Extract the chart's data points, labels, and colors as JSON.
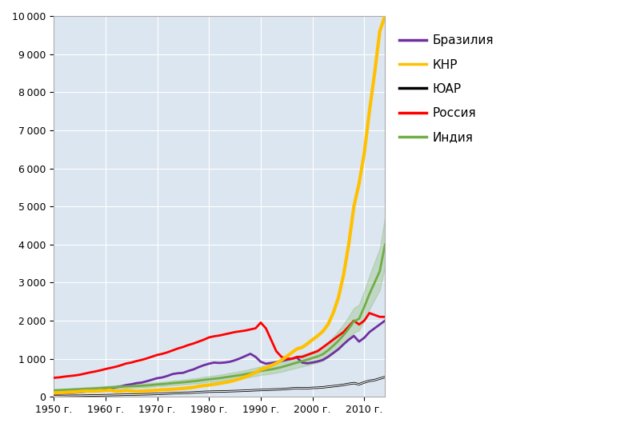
{
  "years": [
    1950,
    1951,
    1952,
    1953,
    1954,
    1955,
    1956,
    1957,
    1958,
    1959,
    1960,
    1961,
    1962,
    1963,
    1964,
    1965,
    1966,
    1967,
    1968,
    1969,
    1970,
    1971,
    1972,
    1973,
    1974,
    1975,
    1976,
    1977,
    1978,
    1979,
    1980,
    1981,
    1982,
    1983,
    1984,
    1985,
    1986,
    1987,
    1988,
    1989,
    1990,
    1991,
    1992,
    1993,
    1994,
    1995,
    1996,
    1997,
    1998,
    1999,
    2000,
    2001,
    2002,
    2003,
    2004,
    2005,
    2006,
    2007,
    2008,
    2009,
    2010,
    2011,
    2012,
    2013,
    2014
  ],
  "brazil": [
    75,
    82,
    92,
    100,
    107,
    120,
    135,
    148,
    155,
    168,
    200,
    220,
    250,
    275,
    310,
    330,
    360,
    375,
    410,
    450,
    490,
    510,
    550,
    600,
    620,
    630,
    680,
    720,
    780,
    830,
    870,
    900,
    890,
    900,
    920,
    960,
    1010,
    1070,
    1130,
    1050,
    920,
    870,
    890,
    910,
    940,
    970,
    1000,
    1030,
    900,
    880,
    900,
    930,
    970,
    1050,
    1150,
    1250,
    1380,
    1500,
    1600,
    1450,
    1550,
    1700,
    1800,
    1900,
    2000
  ],
  "china": [
    100,
    108,
    115,
    122,
    128,
    140,
    150,
    150,
    150,
    158,
    165,
    175,
    145,
    150,
    165,
    155,
    145,
    150,
    158,
    165,
    175,
    185,
    190,
    200,
    210,
    220,
    235,
    250,
    275,
    295,
    310,
    330,
    350,
    375,
    400,
    435,
    475,
    520,
    580,
    640,
    720,
    760,
    820,
    880,
    960,
    1060,
    1160,
    1260,
    1300,
    1390,
    1500,
    1600,
    1720,
    1900,
    2200,
    2600,
    3200,
    4000,
    5000,
    5600,
    6400,
    7500,
    8500,
    9600,
    10000
  ],
  "south_africa": [
    20,
    22,
    24,
    26,
    28,
    30,
    33,
    36,
    38,
    41,
    44,
    47,
    50,
    53,
    57,
    58,
    62,
    65,
    68,
    73,
    78,
    82,
    88,
    95,
    100,
    105,
    108,
    114,
    122,
    130,
    135,
    138,
    140,
    143,
    148,
    152,
    157,
    162,
    168,
    175,
    180,
    185,
    190,
    195,
    200,
    210,
    220,
    230,
    225,
    225,
    235,
    240,
    250,
    265,
    280,
    295,
    315,
    340,
    360,
    330,
    380,
    420,
    440,
    480,
    520
  ],
  "russia": [
    500,
    510,
    530,
    545,
    560,
    580,
    610,
    640,
    665,
    695,
    730,
    760,
    790,
    830,
    875,
    900,
    940,
    970,
    1010,
    1055,
    1100,
    1130,
    1170,
    1220,
    1270,
    1310,
    1360,
    1400,
    1450,
    1500,
    1560,
    1590,
    1610,
    1640,
    1670,
    1700,
    1720,
    1740,
    1770,
    1800,
    1950,
    1800,
    1500,
    1200,
    1050,
    1000,
    1000,
    1050,
    1050,
    1100,
    1150,
    1200,
    1300,
    1400,
    1500,
    1600,
    1700,
    1850,
    2000,
    1900,
    2000,
    2200,
    2150,
    2100,
    2100
  ],
  "india": [
    170,
    175,
    182,
    188,
    195,
    202,
    210,
    215,
    222,
    230,
    240,
    248,
    256,
    265,
    275,
    280,
    285,
    292,
    300,
    312,
    325,
    335,
    345,
    360,
    370,
    382,
    395,
    410,
    425,
    445,
    460,
    475,
    490,
    510,
    530,
    550,
    570,
    595,
    620,
    650,
    680,
    700,
    720,
    748,
    780,
    820,
    860,
    900,
    940,
    975,
    1020,
    1060,
    1120,
    1220,
    1340,
    1470,
    1620,
    1790,
    1980,
    2050,
    2360,
    2700,
    3000,
    3300,
    4000
  ],
  "india_upper": [
    200,
    206,
    215,
    222,
    230,
    238,
    248,
    254,
    262,
    272,
    283,
    292,
    302,
    312,
    324,
    330,
    336,
    344,
    354,
    368,
    383,
    395,
    407,
    425,
    436,
    450,
    466,
    484,
    501,
    525,
    542,
    560,
    578,
    601,
    625,
    648,
    672,
    701,
    731,
    766,
    801,
    825,
    849,
    882,
    920,
    967,
    1014,
    1061,
    1108,
    1150,
    1202,
    1250,
    1320,
    1438,
    1580,
    1733,
    1910,
    2110,
    2334,
    2417,
    2783,
    3183,
    3540,
    3890,
    4720
  ],
  "india_lower": [
    145,
    149,
    155,
    160,
    166,
    172,
    179,
    183,
    189,
    196,
    204,
    211,
    218,
    225,
    233,
    238,
    242,
    248,
    255,
    265,
    276,
    284,
    293,
    305,
    314,
    324,
    335,
    348,
    360,
    377,
    390,
    402,
    415,
    432,
    449,
    465,
    483,
    503,
    523,
    548,
    573,
    590,
    608,
    632,
    658,
    693,
    727,
    761,
    795,
    826,
    864,
    900,
    950,
    1036,
    1138,
    1247,
    1375,
    1519,
    1681,
    1742,
    2006,
    2297,
    2556,
    2806,
    3420
  ],
  "colors": {
    "brazil": "#7030a0",
    "china": "#ffc000",
    "south_africa": "#000000",
    "russia": "#ff0000",
    "india": "#70ad47"
  },
  "legend_labels": [
    "Бразилия",
    "КНР",
    "ЮАР",
    "Россия",
    "Индия"
  ],
  "xlim": [
    1950,
    2014
  ],
  "ylim": [
    0,
    10000
  ],
  "yticks": [
    0,
    1000,
    2000,
    3000,
    4000,
    5000,
    6000,
    7000,
    8000,
    9000,
    10000
  ],
  "xtick_years": [
    1950,
    1960,
    1970,
    1980,
    1990,
    2000,
    2010
  ],
  "background_color": "#dce6f1",
  "plot_bg_color": "#dce6f1",
  "outer_bg_color": "#ffffff",
  "line_width": 2.0,
  "india_band_alpha": 0.25
}
